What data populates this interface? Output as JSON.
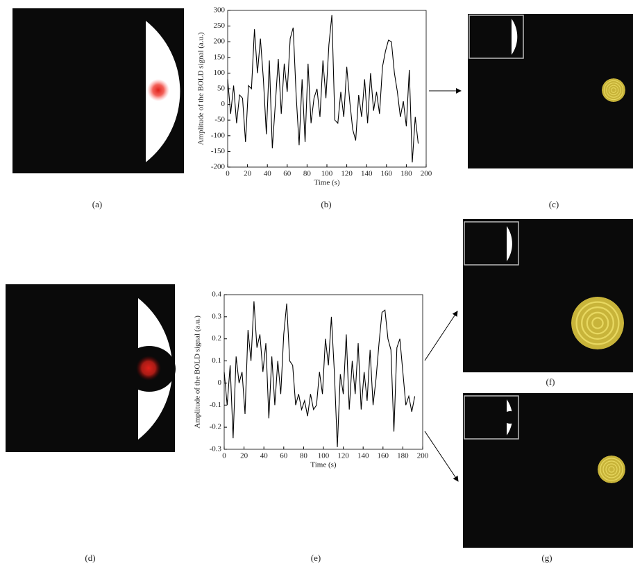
{
  "chart_data": [
    {
      "type": "line",
      "xlabel": "Time (s)",
      "ylabel": "Amplitude of the BOLD signal (a.u.)",
      "x": [
        0,
        3,
        6,
        9,
        12,
        15,
        18,
        21,
        24,
        27,
        30,
        33,
        36,
        39,
        42,
        45,
        48,
        51,
        54,
        57,
        60,
        63,
        66,
        69,
        72,
        75,
        78,
        81,
        84,
        87,
        90,
        93,
        96,
        99,
        102,
        105,
        108,
        111,
        114,
        117,
        120,
        123,
        126,
        129,
        132,
        135,
        138,
        141,
        144,
        147,
        150,
        153,
        156,
        159,
        162,
        165,
        168,
        171,
        174,
        177,
        180,
        183,
        186,
        189,
        192
      ],
      "series": [
        {
          "color": "#000000",
          "values": [
            80,
            -30,
            60,
            -60,
            30,
            20,
            -120,
            60,
            50,
            240,
            100,
            210,
            80,
            -95,
            140,
            -140,
            0,
            145,
            -30,
            130,
            40,
            210,
            245,
            30,
            -130,
            80,
            -120,
            130,
            -60,
            20,
            50,
            -40,
            140,
            20,
            190,
            285,
            -50,
            -60,
            40,
            -40,
            120,
            10,
            -80,
            -115,
            30,
            -40,
            80,
            -60,
            100,
            -20,
            40,
            -30,
            120,
            170,
            205,
            200,
            100,
            40,
            -40,
            10,
            -70,
            110,
            -185,
            -40,
            -125
          ]
        }
      ],
      "xlim": [
        0,
        200
      ],
      "xticks": [
        0,
        20,
        40,
        60,
        80,
        100,
        120,
        140,
        160,
        180,
        200
      ],
      "ylim": [
        -200,
        300
      ],
      "yticks": [
        -200,
        -150,
        -100,
        -50,
        0,
        50,
        100,
        150,
        200,
        250,
        300
      ]
    },
    {
      "type": "line",
      "xlabel": "Time (s)",
      "ylabel": "Amplitude of the BOLD signal (a.u.)",
      "x": [
        0,
        3,
        6,
        9,
        12,
        15,
        18,
        21,
        24,
        27,
        30,
        33,
        36,
        39,
        42,
        45,
        48,
        51,
        54,
        57,
        60,
        63,
        66,
        69,
        72,
        75,
        78,
        81,
        84,
        87,
        90,
        93,
        96,
        99,
        102,
        105,
        108,
        111,
        114,
        117,
        120,
        123,
        126,
        129,
        132,
        135,
        138,
        141,
        144,
        147,
        150,
        153,
        156,
        159,
        162,
        165,
        168,
        171,
        174,
        177,
        180,
        183,
        186,
        189,
        192
      ],
      "series": [
        {
          "color": "#000000",
          "values": [
            0.05,
            -0.1,
            0.08,
            -0.25,
            0.12,
            0.0,
            0.05,
            -0.14,
            0.24,
            0.1,
            0.37,
            0.16,
            0.22,
            0.05,
            0.18,
            -0.16,
            0.12,
            -0.1,
            0.1,
            -0.05,
            0.22,
            0.36,
            0.1,
            0.08,
            -0.1,
            -0.05,
            -0.12,
            -0.08,
            -0.15,
            -0.05,
            -0.12,
            -0.1,
            0.05,
            -0.05,
            0.2,
            0.08,
            0.3,
            0.05,
            -0.29,
            0.04,
            -0.05,
            0.22,
            -0.12,
            0.1,
            -0.05,
            0.18,
            -0.12,
            0.05,
            -0.08,
            0.15,
            -0.1,
            0.02,
            0.18,
            0.32,
            0.33,
            0.2,
            0.15,
            -0.22,
            0.16,
            0.2,
            0.05,
            -0.1,
            -0.06,
            -0.13,
            -0.06
          ]
        }
      ],
      "xlim": [
        0,
        200
      ],
      "xticks": [
        0,
        20,
        40,
        60,
        80,
        100,
        120,
        140,
        160,
        180,
        200
      ],
      "ylim": [
        -0.3,
        0.4
      ],
      "yticks": [
        -0.3,
        -0.2,
        -0.1,
        0,
        0.1,
        0.2,
        0.3,
        0.4
      ]
    }
  ],
  "panel_labels": [
    "(a)",
    "(b)",
    "(c)",
    "(d)",
    "(e)",
    "(f)",
    "(g)"
  ]
}
